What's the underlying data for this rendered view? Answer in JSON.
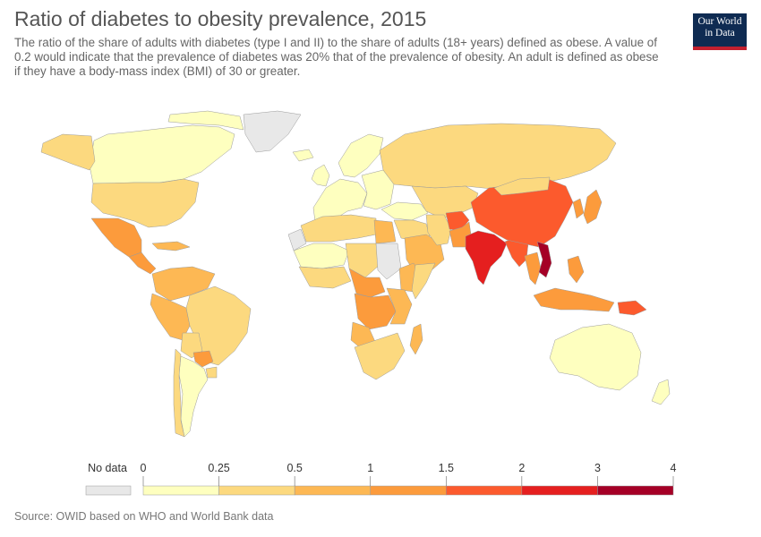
{
  "title": "Ratio of diabetes to obesity prevalence, 2015",
  "subtitle": "The ratio of the share of adults with diabetes (type I and II) to the share of adults (18+ years) defined as obese. A value of 0.2 would indicate that the prevalence of diabetes was 20% that of the prevalence of obesity. An adult is defined as obese if they have a body-mass index (BMI) of 30 or greater.",
  "logo": {
    "line1": "Our World",
    "line2": "in Data"
  },
  "source": "Source: OWID based on WHO and World Bank data",
  "legend": {
    "no_data_label": "No data",
    "no_data_color": "#e8e8e8",
    "ticks": [
      "0",
      "0.25",
      "0.5",
      "1",
      "1.5",
      "2",
      "3",
      "4"
    ],
    "bins": [
      {
        "from": "0",
        "to": "0.25",
        "color": "#feffbf"
      },
      {
        "from": "0.25",
        "to": "0.5",
        "color": "#fcd97f"
      },
      {
        "from": "0.5",
        "to": "1",
        "color": "#fdb854"
      },
      {
        "from": "1",
        "to": "1.5",
        "color": "#fc9b3c"
      },
      {
        "from": "1.5",
        "to": "2",
        "color": "#fc5a2d"
      },
      {
        "from": "2",
        "to": "3",
        "color": "#e51f1f"
      },
      {
        "from": "3",
        "to": "4",
        "color": "#a50026"
      }
    ]
  },
  "regions": [
    {
      "name": "canada",
      "bin": 0
    },
    {
      "name": "alaska",
      "bin": 1
    },
    {
      "name": "greenland",
      "bin": -1
    },
    {
      "name": "united-states",
      "bin": 1
    },
    {
      "name": "mexico",
      "bin": 3
    },
    {
      "name": "central-america",
      "bin": 3
    },
    {
      "name": "caribbean",
      "bin": 2
    },
    {
      "name": "colombia-venezuela",
      "bin": 2
    },
    {
      "name": "ecuador-peru",
      "bin": 2
    },
    {
      "name": "brazil",
      "bin": 1
    },
    {
      "name": "bolivia",
      "bin": 1
    },
    {
      "name": "paraguay",
      "bin": 3
    },
    {
      "name": "argentina",
      "bin": 0
    },
    {
      "name": "chile",
      "bin": 1
    },
    {
      "name": "uruguay",
      "bin": 1
    },
    {
      "name": "iceland",
      "bin": 0
    },
    {
      "name": "uk-ireland",
      "bin": 0
    },
    {
      "name": "scandinavia",
      "bin": 0
    },
    {
      "name": "western-europe",
      "bin": 0
    },
    {
      "name": "eastern-europe",
      "bin": 0
    },
    {
      "name": "russia",
      "bin": 1
    },
    {
      "name": "turkey-caucasus",
      "bin": 0
    },
    {
      "name": "central-asia",
      "bin": 1
    },
    {
      "name": "middle-east",
      "bin": 1
    },
    {
      "name": "arabian-peninsula",
      "bin": 2
    },
    {
      "name": "iran",
      "bin": 1
    },
    {
      "name": "afghanistan",
      "bin": 4
    },
    {
      "name": "pakistan",
      "bin": 3
    },
    {
      "name": "india",
      "bin": 5
    },
    {
      "name": "bangladesh-myanmar",
      "bin": 4
    },
    {
      "name": "china",
      "bin": 4
    },
    {
      "name": "mongolia",
      "bin": 1
    },
    {
      "name": "korea",
      "bin": 3
    },
    {
      "name": "japan",
      "bin": 3
    },
    {
      "name": "southeast-asia",
      "bin": 3
    },
    {
      "name": "vietnam-laos",
      "bin": 6
    },
    {
      "name": "indonesia",
      "bin": 3
    },
    {
      "name": "philippines",
      "bin": 3
    },
    {
      "name": "papua-new-guinea",
      "bin": 4
    },
    {
      "name": "australia",
      "bin": 0
    },
    {
      "name": "new-zealand",
      "bin": 0
    },
    {
      "name": "north-africa",
      "bin": 1
    },
    {
      "name": "western-sahara",
      "bin": -1
    },
    {
      "name": "sahel-west",
      "bin": 0
    },
    {
      "name": "west-africa",
      "bin": 1
    },
    {
      "name": "egypt",
      "bin": 2
    },
    {
      "name": "chad-niger",
      "bin": 1
    },
    {
      "name": "sudan",
      "bin": -1
    },
    {
      "name": "ethiopia",
      "bin": 2
    },
    {
      "name": "somalia",
      "bin": 1
    },
    {
      "name": "central-africa",
      "bin": 3
    },
    {
      "name": "congo-drc",
      "bin": 3
    },
    {
      "name": "east-africa",
      "bin": 2
    },
    {
      "name": "angola",
      "bin": 2
    },
    {
      "name": "southern-africa",
      "bin": 1
    },
    {
      "name": "madagascar",
      "bin": 2
    }
  ]
}
